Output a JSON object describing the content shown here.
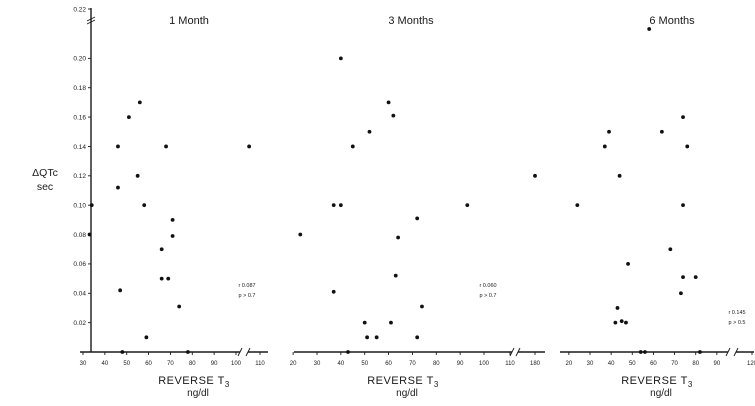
{
  "chart_data": {
    "type": "scatter",
    "ylabel": "ΔQTc",
    "yunit": "sec",
    "ylim": [
      0,
      0.22
    ],
    "yticks": [
      "0.02",
      "0.04",
      "0.06",
      "0.08",
      "0.10",
      "0.12",
      "0.14",
      "0.16",
      "0.18",
      "0.20",
      "0.22"
    ],
    "xlabel_main": "REVERSE T",
    "xlabel_sub": "3",
    "xunit": "ng/dl",
    "panels": [
      {
        "title": "1 Month",
        "xticks": [
          "30",
          "40",
          "50",
          "60",
          "70",
          "80",
          "90",
          "100",
          "110"
        ],
        "stat_r": "r 0.087",
        "stat_p": "p > 0.7",
        "points": [
          {
            "x": 33,
            "y": 0.08
          },
          {
            "x": 34,
            "y": 0.1
          },
          {
            "x": 46,
            "y": 0.14
          },
          {
            "x": 46,
            "y": 0.112
          },
          {
            "x": 47,
            "y": 0.042
          },
          {
            "x": 51,
            "y": 0.16
          },
          {
            "x": 55,
            "y": 0.12
          },
          {
            "x": 56,
            "y": 0.17
          },
          {
            "x": 58,
            "y": 0.1
          },
          {
            "x": 59,
            "y": 0.01
          },
          {
            "x": 66,
            "y": 0.07
          },
          {
            "x": 66,
            "y": 0.05
          },
          {
            "x": 68,
            "y": 0.14
          },
          {
            "x": 69,
            "y": 0.05
          },
          {
            "x": 71,
            "y": 0.09
          },
          {
            "x": 71,
            "y": 0.079
          },
          {
            "x": 74,
            "y": 0.031
          },
          {
            "x": 106,
            "y": 0.14
          },
          {
            "x": 48,
            "y": 0.0
          },
          {
            "x": 78,
            "y": 0.0
          }
        ]
      },
      {
        "title": "3 Months",
        "xticks": [
          "20",
          "30",
          "40",
          "50",
          "60",
          "70",
          "80",
          "90",
          "100",
          "110",
          "180"
        ],
        "stat_r": "r 0.060",
        "stat_p": "p > 0.7",
        "points": [
          {
            "x": 23,
            "y": 0.08
          },
          {
            "x": 37,
            "y": 0.1
          },
          {
            "x": 37,
            "y": 0.041
          },
          {
            "x": 40,
            "y": 0.2
          },
          {
            "x": 40,
            "y": 0.1
          },
          {
            "x": 45,
            "y": 0.14
          },
          {
            "x": 50,
            "y": 0.02
          },
          {
            "x": 51,
            "y": 0.01
          },
          {
            "x": 52,
            "y": 0.15
          },
          {
            "x": 55,
            "y": 0.01
          },
          {
            "x": 60,
            "y": 0.17
          },
          {
            "x": 61,
            "y": 0.02
          },
          {
            "x": 62,
            "y": 0.161
          },
          {
            "x": 63,
            "y": 0.052
          },
          {
            "x": 64,
            "y": 0.078
          },
          {
            "x": 72,
            "y": 0.091
          },
          {
            "x": 72,
            "y": 0.01
          },
          {
            "x": 74,
            "y": 0.031
          },
          {
            "x": 93,
            "y": 0.1
          },
          {
            "x": 180,
            "y": 0.12
          },
          {
            "x": 43,
            "y": 0.0
          }
        ]
      },
      {
        "title": "6 Months",
        "xticks": [
          "20",
          "30",
          "40",
          "50",
          "60",
          "70",
          "80",
          "90",
          "120"
        ],
        "stat_r": "r 0.145",
        "stat_p": "p > 0.5",
        "points": [
          {
            "x": 24,
            "y": 0.1
          },
          {
            "x": 37,
            "y": 0.14
          },
          {
            "x": 39,
            "y": 0.15
          },
          {
            "x": 42,
            "y": 0.02
          },
          {
            "x": 43,
            "y": 0.03
          },
          {
            "x": 44,
            "y": 0.12
          },
          {
            "x": 45,
            "y": 0.021
          },
          {
            "x": 47,
            "y": 0.02
          },
          {
            "x": 48,
            "y": 0.06
          },
          {
            "x": 58,
            "y": 0.22
          },
          {
            "x": 64,
            "y": 0.15
          },
          {
            "x": 68,
            "y": 0.07
          },
          {
            "x": 73,
            "y": 0.04
          },
          {
            "x": 74,
            "y": 0.16
          },
          {
            "x": 74,
            "y": 0.1
          },
          {
            "x": 74,
            "y": 0.051
          },
          {
            "x": 76,
            "y": 0.14
          },
          {
            "x": 80,
            "y": 0.051
          },
          {
            "x": 54,
            "y": 0.0
          },
          {
            "x": 56,
            "y": 0.0
          },
          {
            "x": 82,
            "y": 0.0
          }
        ]
      }
    ]
  }
}
